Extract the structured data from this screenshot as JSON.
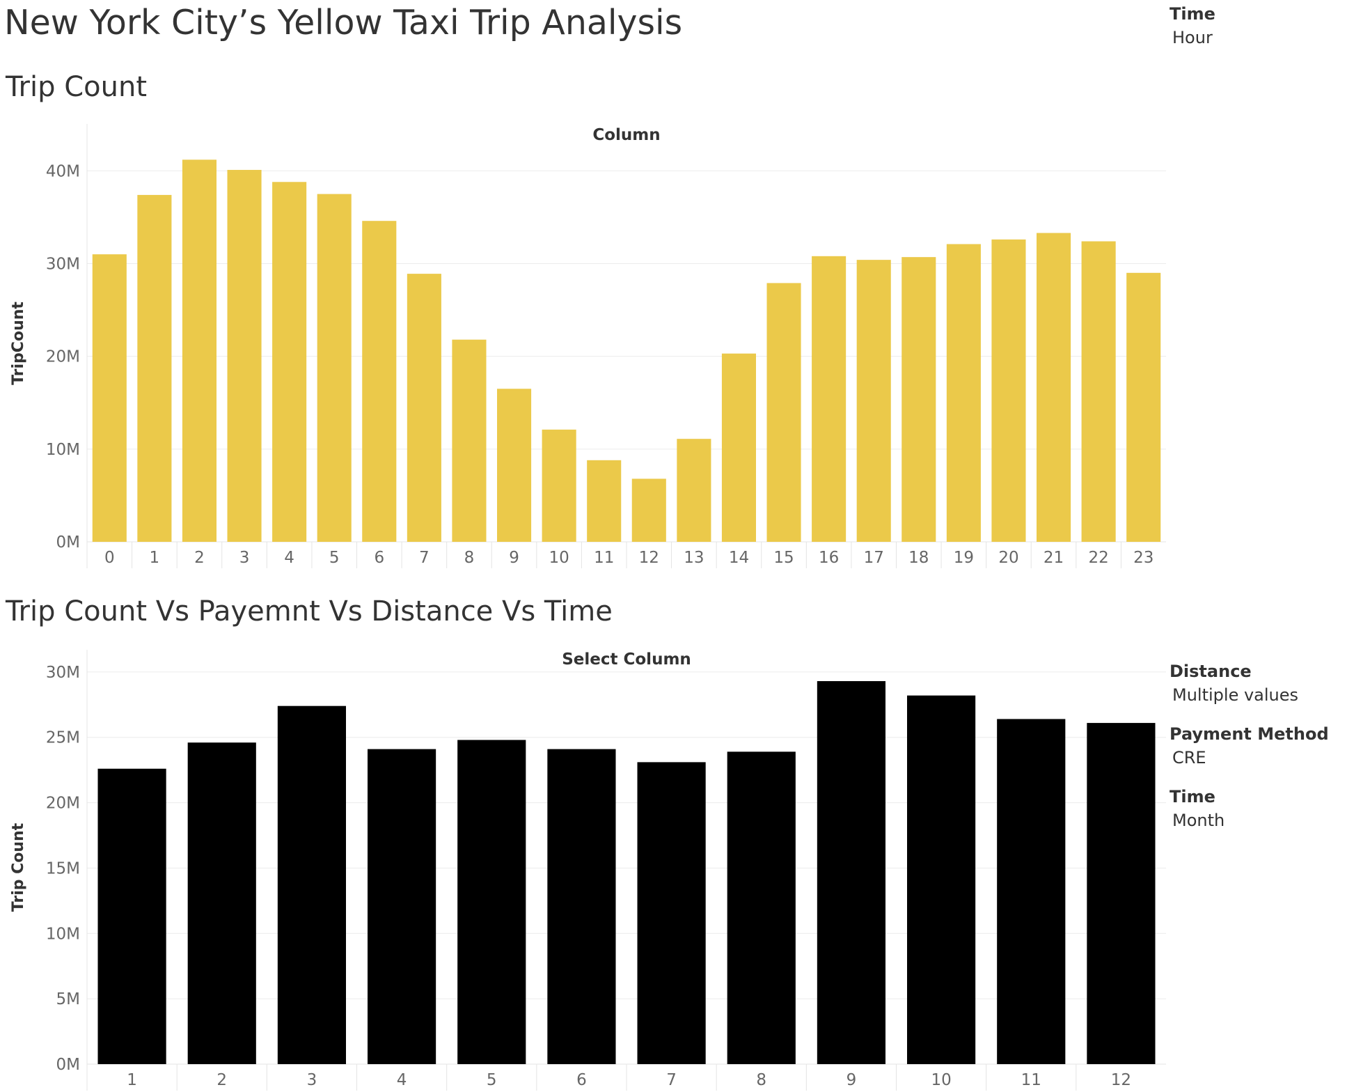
{
  "dashboard": {
    "title": "New York City’s Yellow Taxi Trip Analysis"
  },
  "top_panel": {
    "time_label": "Time",
    "time_value": "Hour"
  },
  "bottom_panel": {
    "distance_label": "Distance",
    "distance_value": "Multiple values",
    "payment_label": "Payment Method",
    "payment_value": "CRE",
    "time_label": "Time",
    "time_value": "Month"
  },
  "sections": {
    "top_title": "Trip Count",
    "bottom_title": "Trip Count Vs Payemnt Vs Distance Vs Time"
  },
  "chart_data": [
    {
      "type": "bar",
      "title": "Column",
      "xlabel": "",
      "ylabel": "TripCount",
      "categories": [
        "0",
        "1",
        "2",
        "3",
        "4",
        "5",
        "6",
        "7",
        "8",
        "9",
        "10",
        "11",
        "12",
        "13",
        "14",
        "15",
        "16",
        "17",
        "18",
        "19",
        "20",
        "21",
        "22",
        "23"
      ],
      "values": [
        31.0,
        37.4,
        41.2,
        40.1,
        38.8,
        37.5,
        34.6,
        28.9,
        21.8,
        16.5,
        12.1,
        8.8,
        6.8,
        11.1,
        20.3,
        27.9,
        30.8,
        30.4,
        30.7,
        32.1,
        32.6,
        33.3,
        32.4,
        29.0
      ],
      "unit": "M",
      "ylim": [
        0,
        42.8
      ],
      "yticks": [
        0,
        10,
        20,
        30,
        40
      ],
      "ytick_labels": [
        "0M",
        "10M",
        "20M",
        "30M",
        "40M"
      ],
      "grid": true,
      "colors": {
        "bar": "#EBC94A"
      }
    },
    {
      "type": "bar",
      "title": "Select Column",
      "xlabel": "",
      "ylabel": "Trip Count",
      "categories": [
        "1",
        "2",
        "3",
        "4",
        "5",
        "6",
        "7",
        "8",
        "9",
        "10",
        "11",
        "12"
      ],
      "values": [
        22.6,
        24.6,
        27.4,
        24.1,
        24.8,
        24.1,
        23.1,
        23.9,
        29.3,
        28.2,
        26.4,
        26.1
      ],
      "unit": "M",
      "ylim": [
        0,
        30.1
      ],
      "yticks": [
        0,
        5,
        10,
        15,
        20,
        25,
        30
      ],
      "ytick_labels": [
        "0M",
        "5M",
        "10M",
        "15M",
        "20M",
        "25M",
        "30M"
      ],
      "grid": true,
      "colors": {
        "bar": "#000000"
      }
    }
  ]
}
